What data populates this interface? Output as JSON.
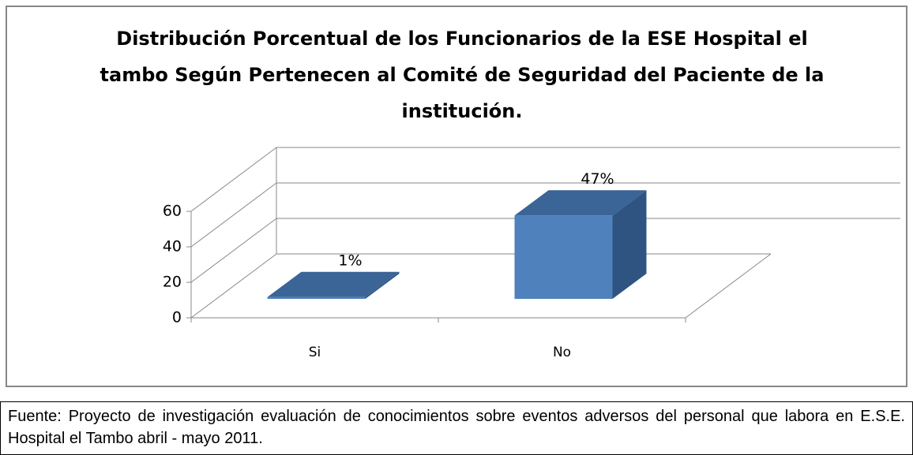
{
  "chart_data": {
    "type": "bar3d",
    "title": [
      "Distribución Porcentual de los Funcionarios de la ESE Hospital el",
      "tambo Según Pertenecen al Comité de Seguridad del Paciente de la",
      "institución."
    ],
    "categories": [
      "Si",
      "No"
    ],
    "values": [
      1,
      47
    ],
    "value_labels": [
      "1%",
      "47%"
    ],
    "color": "#4f81bd",
    "ylim": [
      0,
      60
    ],
    "yticks": [
      0,
      20,
      40,
      60
    ],
    "grid": true
  },
  "source": "Fuente: Proyecto de investigación evaluación de conocimientos sobre eventos adversos del personal que labora en E.S.E. Hospital el Tambo abril - mayo  2011."
}
